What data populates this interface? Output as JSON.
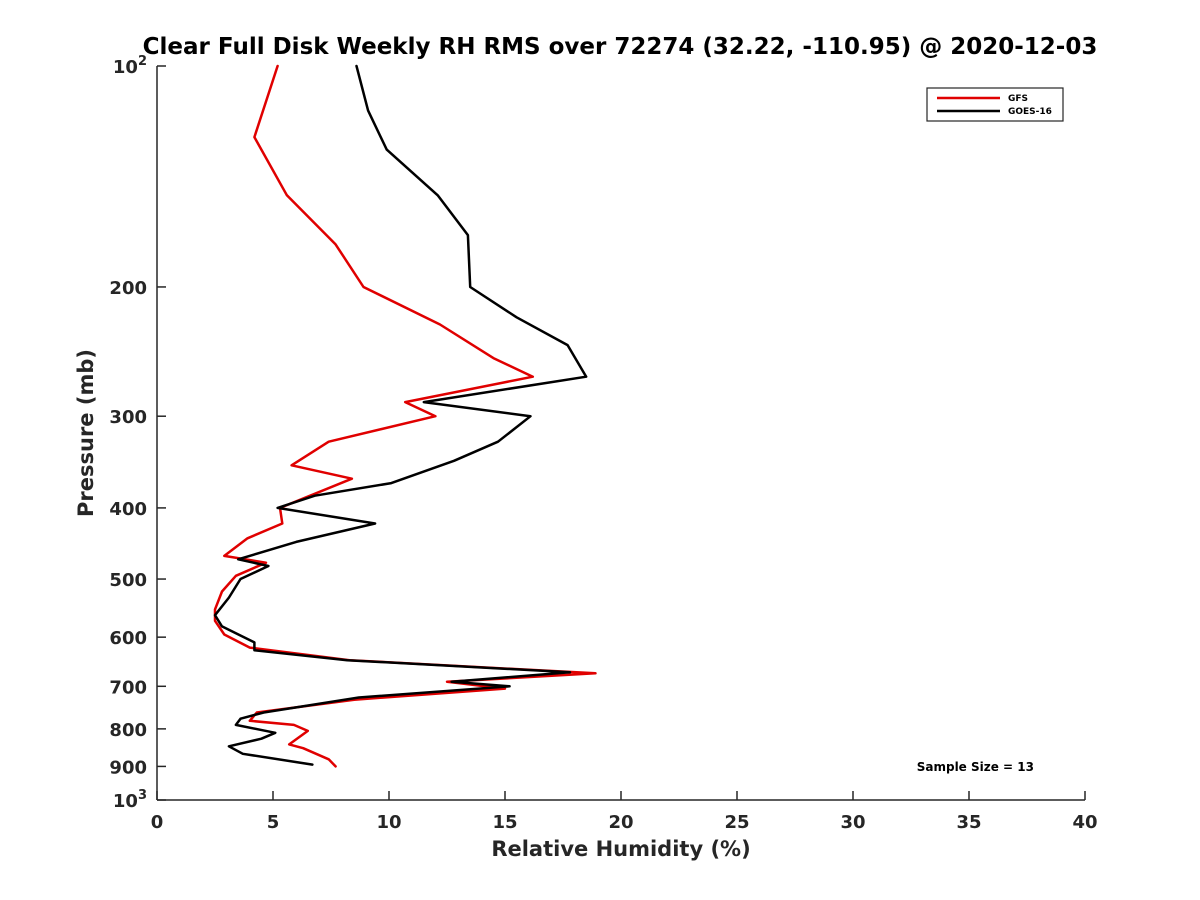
{
  "chart_data": {
    "type": "line",
    "title": "Clear Full Disk Weekly RH RMS over 72274 (32.22, -110.95) @ 2020-12-03",
    "xlabel": "Relative Humidity (%)",
    "ylabel": "Pressure (mb)",
    "xlim": [
      0,
      40
    ],
    "ylim": [
      100,
      1000
    ],
    "y_scale": "log",
    "y_reversed": true,
    "x_ticks": [
      0,
      5,
      10,
      15,
      20,
      25,
      30,
      35,
      40
    ],
    "x_tick_labels": [
      "0",
      "5",
      "10",
      "15",
      "20",
      "25",
      "30",
      "35",
      "40"
    ],
    "y_ticks": [
      100,
      200,
      300,
      400,
      500,
      600,
      700,
      800,
      900,
      1000
    ],
    "y_tick_labels": [
      {
        "base": "10",
        "exp": "2"
      },
      {
        "base": "200",
        "exp": ""
      },
      {
        "base": "300",
        "exp": ""
      },
      {
        "base": "400",
        "exp": ""
      },
      {
        "base": "500",
        "exp": ""
      },
      {
        "base": "600",
        "exp": ""
      },
      {
        "base": "700",
        "exp": ""
      },
      {
        "base": "800",
        "exp": ""
      },
      {
        "base": "900",
        "exp": ""
      },
      {
        "base": "10",
        "exp": "3"
      }
    ],
    "grid": false,
    "legend_position": "top-right",
    "annotation": "Sample Size = 13",
    "series": [
      {
        "name": "GFS",
        "color": "#e00000",
        "points": [
          [
            5.2,
            100
          ],
          [
            4.2,
            125
          ],
          [
            5.6,
            150
          ],
          [
            7.7,
            175
          ],
          [
            8.9,
            200
          ],
          [
            12.2,
            225
          ],
          [
            14.5,
            250
          ],
          [
            16.2,
            265
          ],
          [
            10.7,
            287
          ],
          [
            12.0,
            300
          ],
          [
            7.4,
            325
          ],
          [
            5.8,
            350
          ],
          [
            8.4,
            365
          ],
          [
            5.3,
            400
          ],
          [
            5.4,
            420
          ],
          [
            3.9,
            440
          ],
          [
            2.9,
            465
          ],
          [
            4.7,
            475
          ],
          [
            3.4,
            495
          ],
          [
            2.8,
            520
          ],
          [
            2.5,
            550
          ],
          [
            2.5,
            570
          ],
          [
            2.9,
            595
          ],
          [
            4.0,
            620
          ],
          [
            8.3,
            645
          ],
          [
            18.9,
            672
          ],
          [
            12.5,
            690
          ],
          [
            15.0,
            705
          ],
          [
            8.5,
            730
          ],
          [
            4.3,
            760
          ],
          [
            4.0,
            780
          ],
          [
            5.9,
            790
          ],
          [
            6.5,
            805
          ],
          [
            5.7,
            840
          ],
          [
            6.3,
            850
          ],
          [
            7.4,
            880
          ],
          [
            7.7,
            900
          ]
        ]
      },
      {
        "name": "GOES-16",
        "color": "#000000",
        "points": [
          [
            8.6,
            100
          ],
          [
            9.1,
            115
          ],
          [
            9.9,
            130
          ],
          [
            12.1,
            150
          ],
          [
            13.4,
            170
          ],
          [
            13.5,
            200
          ],
          [
            15.5,
            220
          ],
          [
            17.7,
            240
          ],
          [
            18.5,
            265
          ],
          [
            11.5,
            287
          ],
          [
            16.1,
            300
          ],
          [
            14.7,
            325
          ],
          [
            12.8,
            345
          ],
          [
            10.1,
            370
          ],
          [
            6.8,
            385
          ],
          [
            5.2,
            400
          ],
          [
            9.4,
            420
          ],
          [
            6.0,
            445
          ],
          [
            3.5,
            470
          ],
          [
            4.8,
            480
          ],
          [
            3.6,
            500
          ],
          [
            3.1,
            530
          ],
          [
            2.5,
            560
          ],
          [
            2.8,
            580
          ],
          [
            4.2,
            610
          ],
          [
            4.2,
            625
          ],
          [
            8.2,
            645
          ],
          [
            17.8,
            670
          ],
          [
            12.7,
            690
          ],
          [
            15.2,
            700
          ],
          [
            8.7,
            725
          ],
          [
            4.6,
            760
          ],
          [
            3.6,
            775
          ],
          [
            3.4,
            790
          ],
          [
            5.1,
            810
          ],
          [
            4.5,
            825
          ],
          [
            3.1,
            845
          ],
          [
            3.7,
            865
          ],
          [
            6.7,
            895
          ]
        ]
      }
    ]
  }
}
